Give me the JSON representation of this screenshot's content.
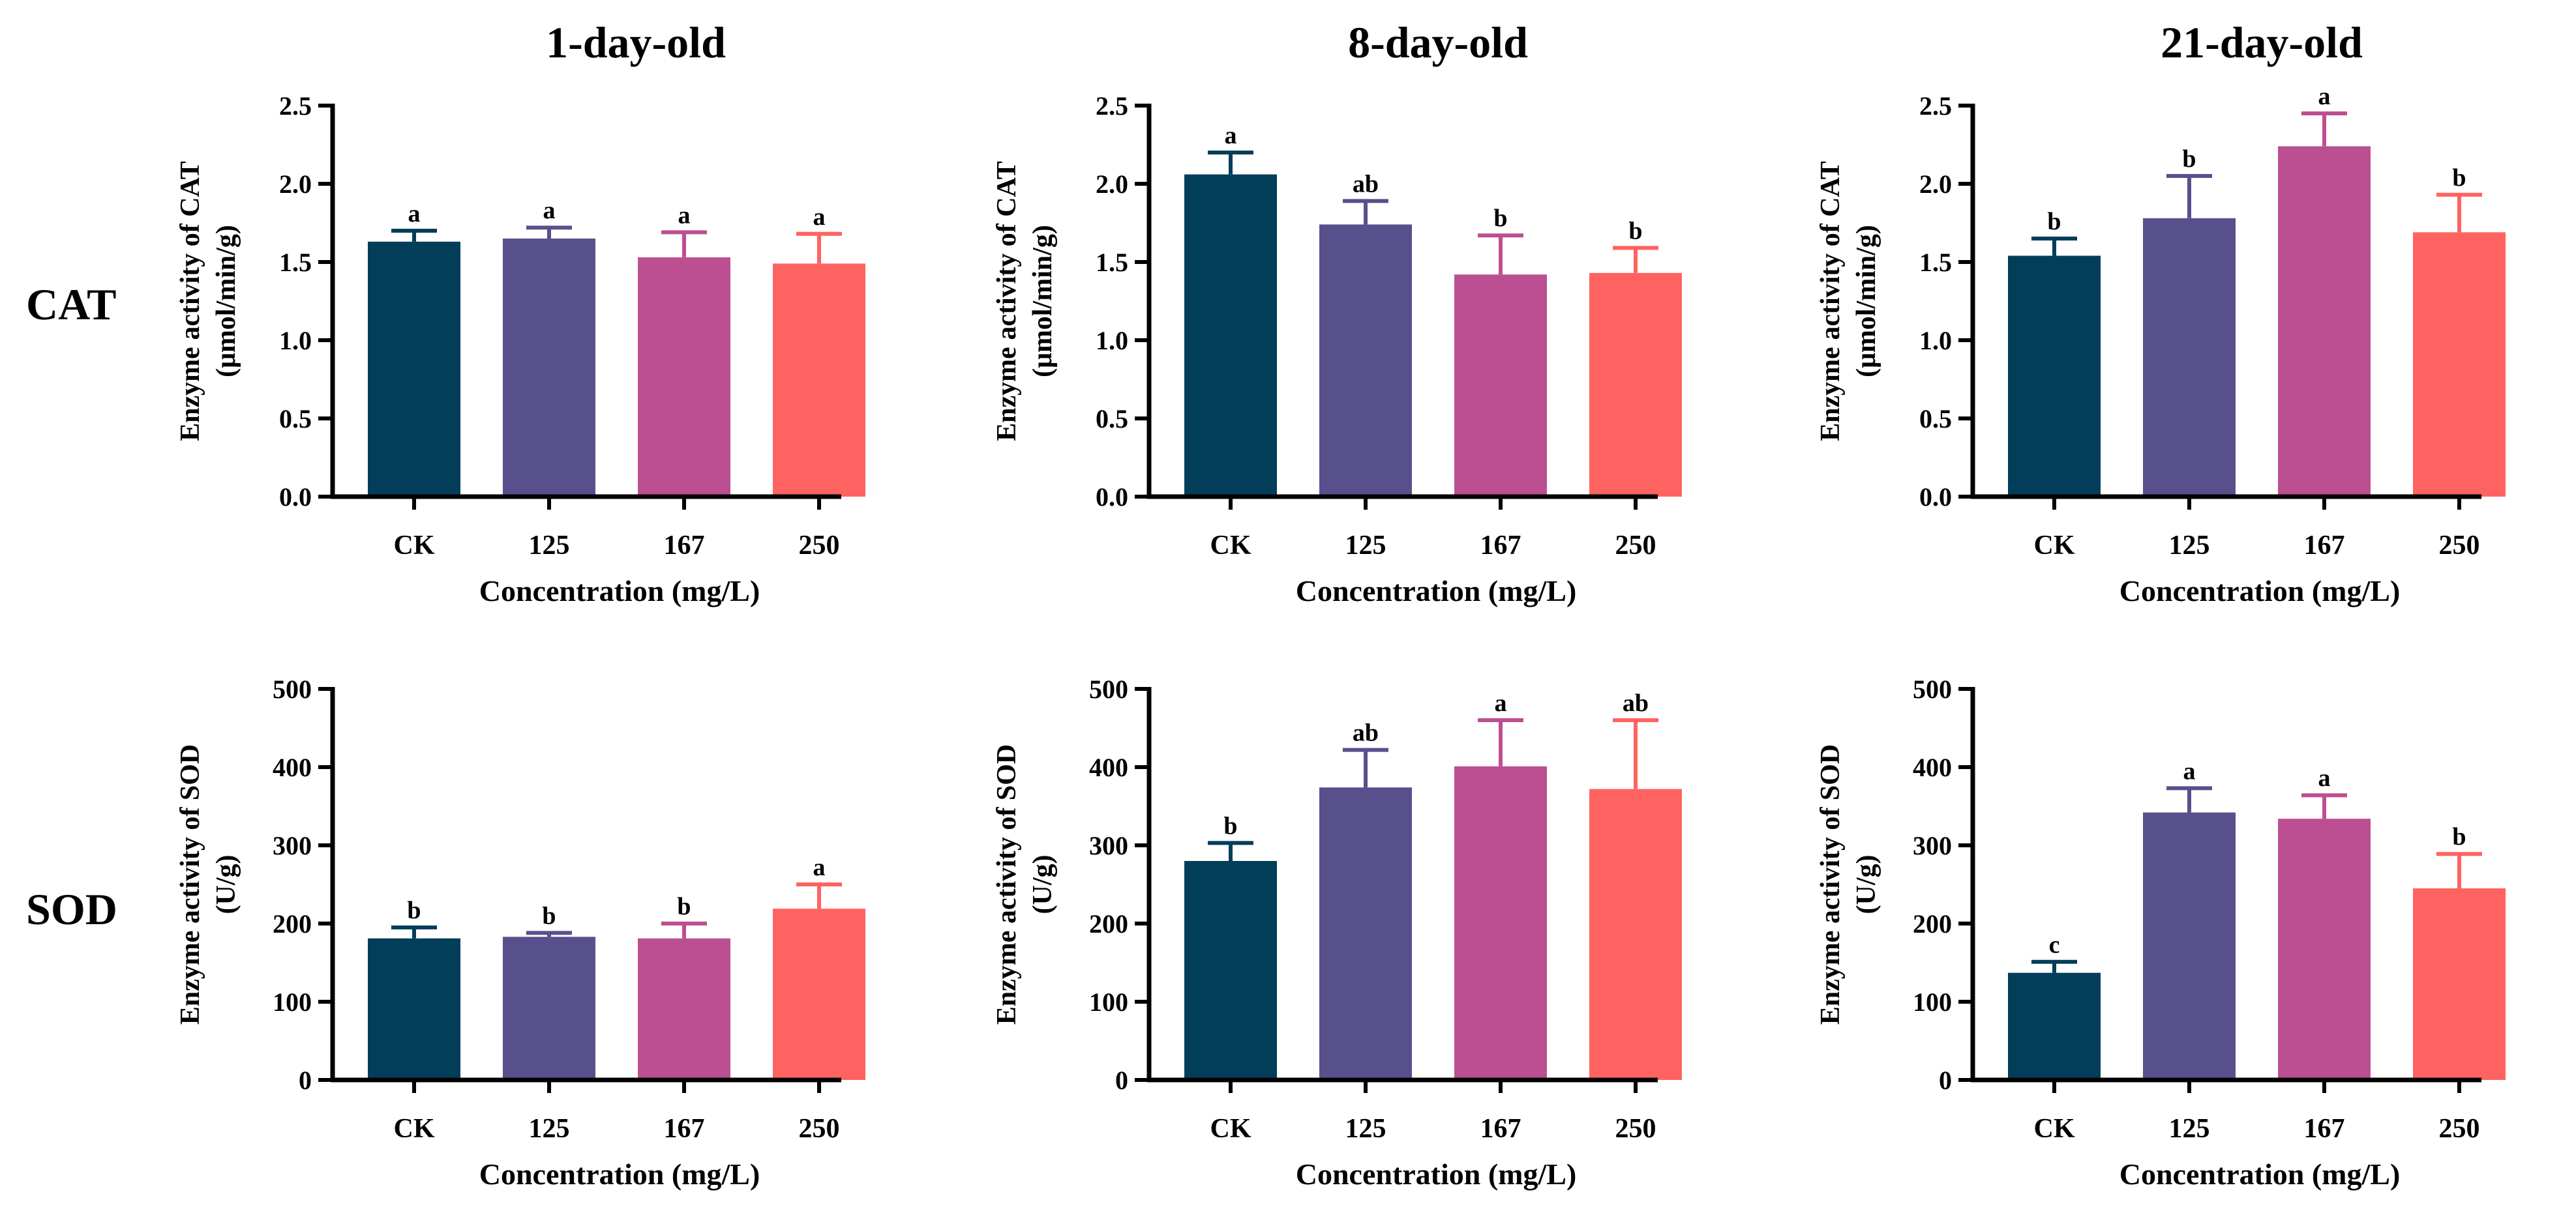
{
  "columns": [
    "1-day-old",
    "8-day-old",
    "21-day-old"
  ],
  "rows": [
    "CAT",
    "SOD"
  ],
  "colors": [
    "#023d59",
    "#58508d",
    "#bc4f91",
    "#ff6361"
  ],
  "chart_data": [
    {
      "type": "bar",
      "row": 0,
      "col": 0,
      "title": "1-day-old",
      "categories": [
        "CK",
        "125",
        "167",
        "250"
      ],
      "values": [
        1.63,
        1.65,
        1.53,
        1.49
      ],
      "errors": [
        0.07,
        0.07,
        0.16,
        0.19
      ],
      "letters": [
        "a",
        "a",
        "a",
        "a"
      ],
      "ylabel": [
        "Enzyme activity of CAT",
        "(μmol/min/g)"
      ],
      "xlabel": "Concentration (mg/L)",
      "ylim": [
        0,
        2.5
      ],
      "yticks": [
        "0.0",
        "0.5",
        "1.0",
        "1.5",
        "2.0",
        "2.5"
      ]
    },
    {
      "type": "bar",
      "row": 0,
      "col": 1,
      "title": "8-day-old",
      "categories": [
        "CK",
        "125",
        "167",
        "250"
      ],
      "values": [
        2.06,
        1.74,
        1.42,
        1.43
      ],
      "errors": [
        0.14,
        0.15,
        0.25,
        0.16
      ],
      "letters": [
        "a",
        "ab",
        "b",
        "b"
      ],
      "ylabel": [
        "Enzyme activity of CAT",
        "(μmol/min/g)"
      ],
      "xlabel": "Concentration (mg/L)",
      "ylim": [
        0,
        2.5
      ],
      "yticks": [
        "0.0",
        "0.5",
        "1.0",
        "1.5",
        "2.0",
        "2.5"
      ]
    },
    {
      "type": "bar",
      "row": 0,
      "col": 2,
      "title": "21-day-old",
      "categories": [
        "CK",
        "125",
        "167",
        "250"
      ],
      "values": [
        1.54,
        1.78,
        2.24,
        1.69
      ],
      "errors": [
        0.11,
        0.27,
        0.21,
        0.24
      ],
      "letters": [
        "b",
        "b",
        "a",
        "b"
      ],
      "ylabel": [
        "Enzyme activity of CAT",
        "(μmol/min/g)"
      ],
      "xlabel": "Concentration (mg/L)",
      "ylim": [
        0,
        2.5
      ],
      "yticks": [
        "0.0",
        "0.5",
        "1.0",
        "1.5",
        "2.0",
        "2.5"
      ]
    },
    {
      "type": "bar",
      "row": 1,
      "col": 0,
      "title": "1-day-old",
      "categories": [
        "CK",
        "125",
        "167",
        "250"
      ],
      "values": [
        181,
        183,
        181,
        219
      ],
      "errors": [
        14,
        5,
        19,
        31
      ],
      "letters": [
        "b",
        "b",
        "b",
        "a"
      ],
      "ylabel": [
        "Enzyme activity of SOD",
        "(U/g)"
      ],
      "xlabel": "Concentration (mg/L)",
      "ylim": [
        0,
        500
      ],
      "yticks": [
        "0",
        "100",
        "200",
        "300",
        "400",
        "500"
      ]
    },
    {
      "type": "bar",
      "row": 1,
      "col": 1,
      "title": "8-day-old",
      "categories": [
        "CK",
        "125",
        "167",
        "250"
      ],
      "values": [
        280,
        374,
        401,
        372
      ],
      "errors": [
        23,
        48,
        59,
        88
      ],
      "letters": [
        "b",
        "ab",
        "a",
        "ab"
      ],
      "ylabel": [
        "Enzyme activity of SOD",
        "(U/g)"
      ],
      "xlabel": "Concentration (mg/L)",
      "ylim": [
        0,
        500
      ],
      "yticks": [
        "0",
        "100",
        "200",
        "300",
        "400",
        "500"
      ]
    },
    {
      "type": "bar",
      "row": 1,
      "col": 2,
      "title": "21-day-old",
      "categories": [
        "CK",
        "125",
        "167",
        "250"
      ],
      "values": [
        137,
        342,
        334,
        245
      ],
      "errors": [
        14,
        31,
        30,
        44
      ],
      "letters": [
        "c",
        "a",
        "a",
        "b"
      ],
      "ylabel": [
        "Enzyme activity of SOD",
        "(U/g)"
      ],
      "xlabel": "Concentration (mg/L)",
      "ylim": [
        0,
        500
      ],
      "yticks": [
        "0",
        "100",
        "200",
        "300",
        "400",
        "500"
      ]
    }
  ]
}
